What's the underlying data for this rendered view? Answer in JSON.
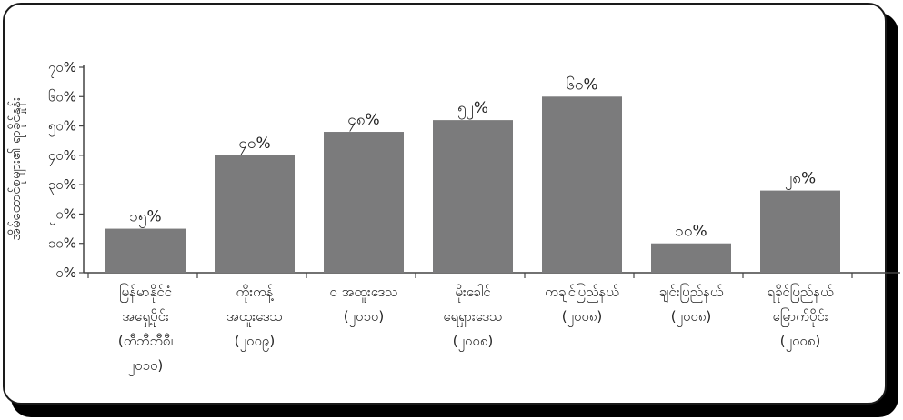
{
  "chart_data": {
    "type": "bar",
    "title": "",
    "ylabel": "အိမ်ထောင်စုများ၏ ရာခိုင်နှုန်း",
    "xlabel": "",
    "ylim": [
      0,
      70
    ],
    "yticks": [
      0,
      10,
      20,
      30,
      40,
      50,
      60,
      70
    ],
    "ytick_labels": [
      "၀%",
      "၁၀%",
      "၂၀%",
      "၃၀%",
      "၄၀%",
      "၅၀%",
      "၆၀%",
      "၇၀%"
    ],
    "bar_color": "#7b7b7c",
    "grid": false,
    "categories": [
      [
        "မြန်မာနိုင်ငံ",
        "အရှေ့ပိုင်း",
        "(တီဘီဘီစီ၊",
        "၂၀၁၀)"
      ],
      [
        "ကိုးကန့်",
        "အထူးဒေသ",
        "(၂၀၀၉)"
      ],
      [
        "ဝ အထူးဒေသ",
        "(၂၀၁၀)"
      ],
      [
        "မိုးခေါင်",
        "ရေရှားဒေသ",
        "(၂၀၀၈)"
      ],
      [
        "ကချင်ပြည်နယ်",
        "(၂၀၀၈)"
      ],
      [
        "ချင်းပြည်နယ်",
        "(၂၀၀၈)"
      ],
      [
        "ရခိုင်ပြည်နယ်",
        "မြောက်ပိုင်း",
        "(၂၀၀၈)"
      ]
    ],
    "values": [
      15,
      40,
      48,
      52,
      60,
      10,
      28
    ],
    "value_labels": [
      "၁၅%",
      "၄၀%",
      "၄၈%",
      "၅၂%",
      "၆၀%",
      "၁၀%",
      "၂၈%"
    ]
  }
}
